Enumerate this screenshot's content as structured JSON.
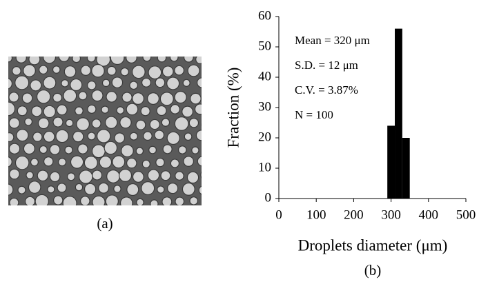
{
  "image": {
    "label": "(a)"
  },
  "chart_data": {
    "type": "histogram",
    "panel_label": "(b)",
    "x_label": "Droplets diameter (μm)",
    "y_label": "Fraction (%)",
    "annotations": [
      "Mean = 320 μm",
      "S.D. = 12 μm",
      "C.V. = 3.87%",
      "N = 100"
    ],
    "bins": [
      290,
      310,
      330,
      350
    ],
    "values": [
      24,
      56,
      20
    ],
    "color": "#000000",
    "xlim": [
      0,
      500
    ],
    "xticks": [
      0,
      100,
      200,
      300,
      400,
      500
    ],
    "ylim": [
      0,
      60
    ],
    "yticks": [
      0,
      10,
      20,
      30,
      40,
      50,
      60
    ]
  }
}
